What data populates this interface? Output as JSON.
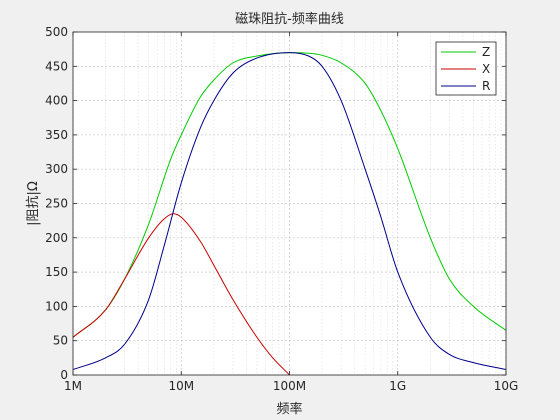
{
  "chart_data": {
    "type": "line",
    "title": "磁珠阻抗-频率曲线",
    "xlabel": "频率",
    "ylabel": "|阻抗|Ω",
    "x_scale": "log",
    "xlim": [
      "1M",
      "10G"
    ],
    "ylim": [
      0,
      500
    ],
    "x_ticks": [
      {
        "label": "1M",
        "value_hz": 1000000
      },
      {
        "label": "10M",
        "value_hz": 10000000
      },
      {
        "label": "100M",
        "value_hz": 100000000
      },
      {
        "label": "1G",
        "value_hz": 1000000000
      },
      {
        "label": "10G",
        "value_hz": 10000000000
      }
    ],
    "y_ticks": [
      0,
      50,
      100,
      150,
      200,
      250,
      300,
      350,
      400,
      450,
      500
    ],
    "grid": true,
    "legend_position": "top-right",
    "series": [
      {
        "name": "Z",
        "color": "#00cc00",
        "x_hz": [
          1000000,
          2000000,
          3000000,
          5000000,
          8000000,
          10000000,
          15000000,
          20000000,
          30000000,
          50000000,
          100000000,
          150000000,
          200000000,
          300000000,
          500000000,
          700000000,
          1000000000,
          2000000000,
          3000000000,
          5000000000,
          10000000000
        ],
        "y": [
          55,
          95,
          140,
          220,
          315,
          350,
          405,
          430,
          455,
          465,
          470,
          469,
          466,
          455,
          425,
          385,
          330,
          200,
          140,
          100,
          65
        ]
      },
      {
        "name": "X",
        "color": "#cc0000",
        "x_hz": [
          1000000,
          2000000,
          3000000,
          5000000,
          7000000,
          8500000,
          10000000,
          15000000,
          20000000,
          30000000,
          50000000,
          70000000,
          100000000
        ],
        "y": [
          55,
          95,
          140,
          200,
          228,
          235,
          230,
          195,
          160,
          110,
          55,
          25,
          0
        ]
      },
      {
        "name": "R",
        "color": "#00008b",
        "x_hz": [
          1000000,
          2000000,
          3000000,
          5000000,
          7000000,
          10000000,
          15000000,
          20000000,
          30000000,
          50000000,
          100000000,
          150000000,
          200000000,
          300000000,
          500000000,
          700000000,
          1000000000,
          2000000000,
          3000000000,
          5000000000,
          10000000000
        ],
        "y": [
          8,
          25,
          45,
          110,
          190,
          280,
          360,
          400,
          440,
          462,
          470,
          465,
          450,
          400,
          300,
          230,
          150,
          55,
          30,
          18,
          8
        ]
      }
    ]
  }
}
